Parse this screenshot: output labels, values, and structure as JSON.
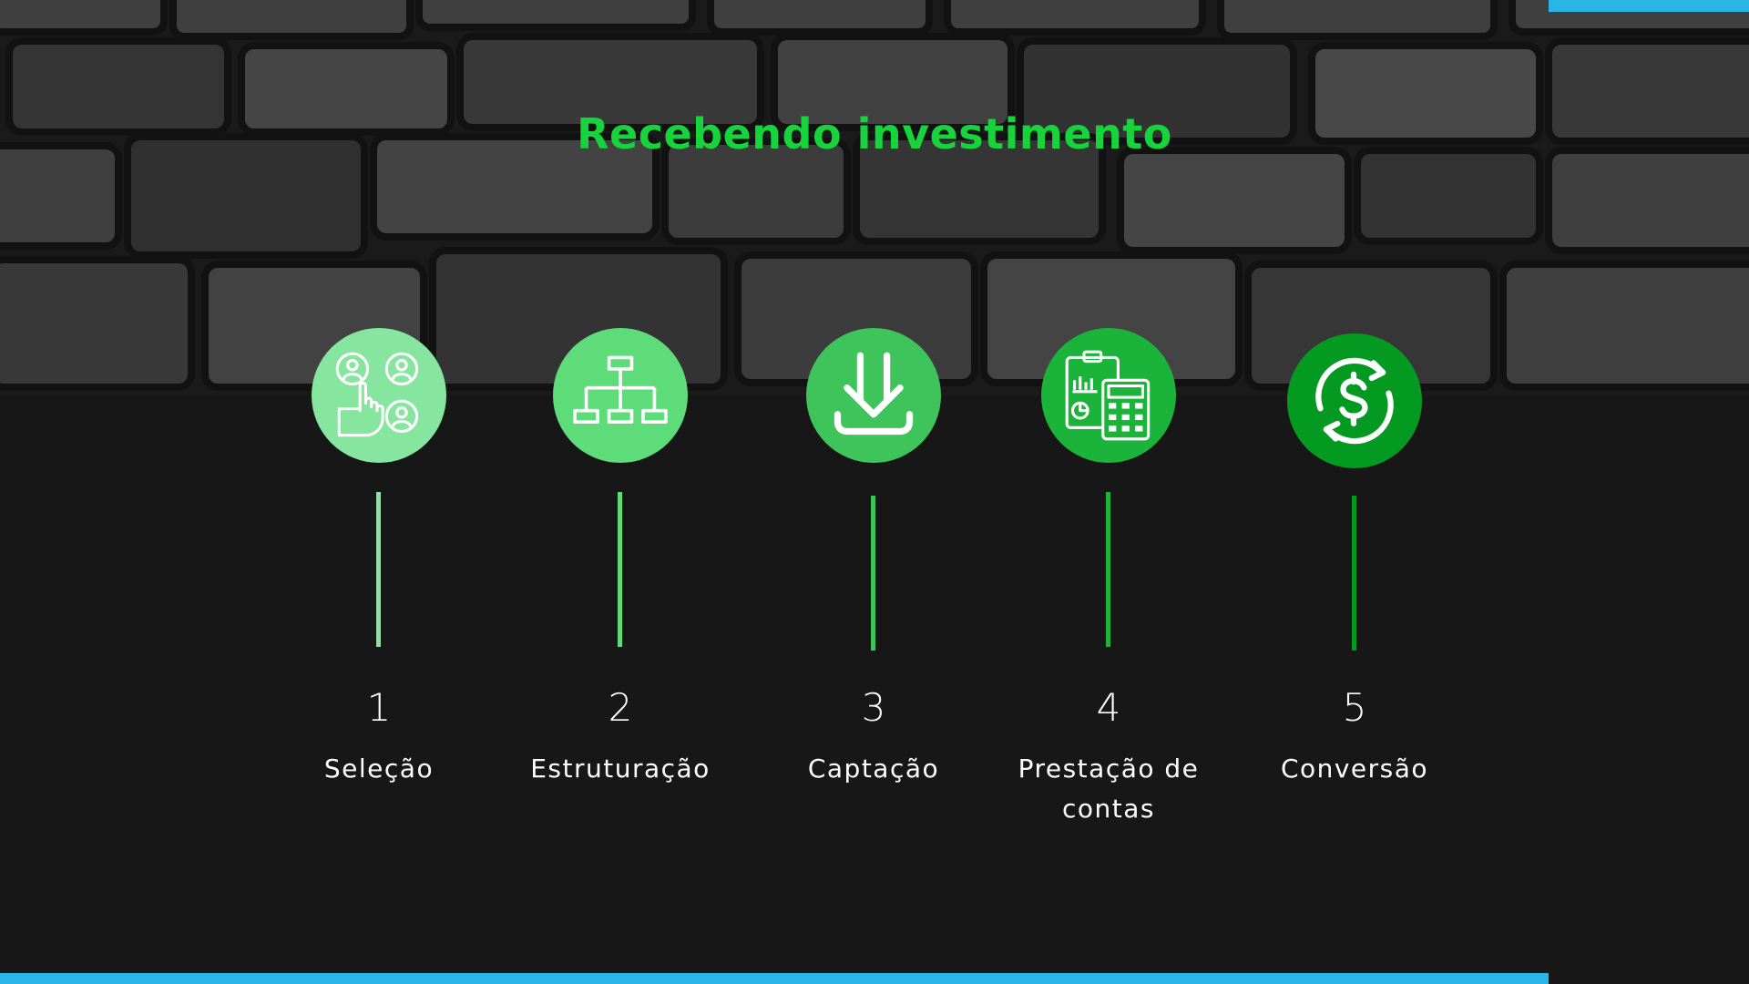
{
  "title": "Recebendo investimento",
  "colors": {
    "title": "#17d33c",
    "accent_bar": "#29b6e6",
    "background": "#171717"
  },
  "steps": [
    {
      "number": "1",
      "label": "Seleção",
      "icon": "user-selection-icon",
      "color": "#86e69f"
    },
    {
      "number": "2",
      "label": "Estruturação",
      "icon": "org-chart-icon",
      "color": "#5fdc7a"
    },
    {
      "number": "3",
      "label": "Captação",
      "icon": "download-icon",
      "color": "#3ec45a"
    },
    {
      "number": "4",
      "label": "Prestação de contas",
      "icon": "report-calculator-icon",
      "color": "#1bb33a"
    },
    {
      "number": "5",
      "label": "Conversão",
      "icon": "currency-exchange-icon",
      "color": "#049a22"
    }
  ]
}
